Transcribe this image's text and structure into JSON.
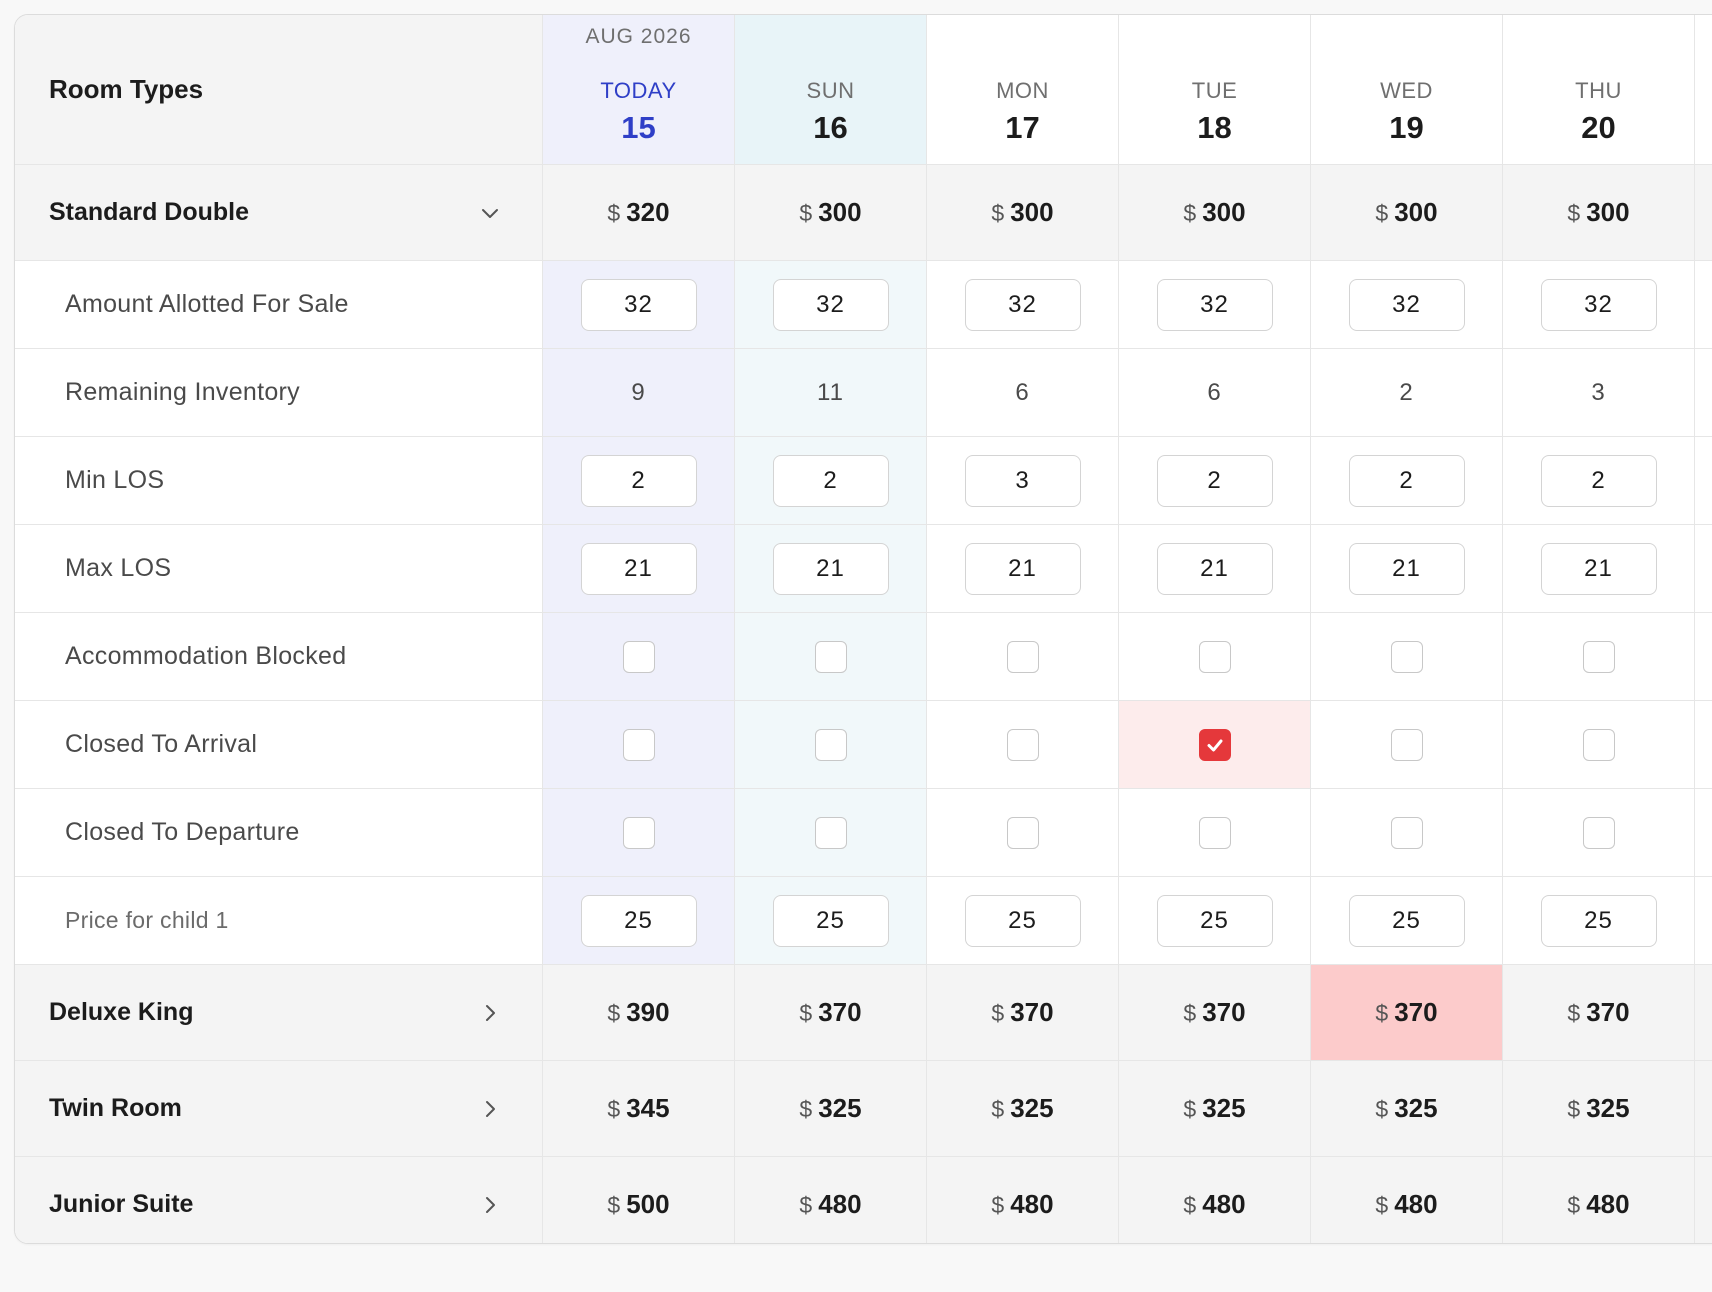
{
  "header": {
    "room_types_label": "Room Types",
    "month_label": "AUG 2026",
    "days": [
      {
        "dow": "TODAY",
        "num": "15"
      },
      {
        "dow": "SUN",
        "num": "16"
      },
      {
        "dow": "MON",
        "num": "17"
      },
      {
        "dow": "TUE",
        "num": "18"
      },
      {
        "dow": "WED",
        "num": "19"
      },
      {
        "dow": "THU",
        "num": "20"
      }
    ]
  },
  "currency_symbol": "$",
  "standard_double": {
    "name": "Standard Double",
    "prices": [
      "320",
      "300",
      "300",
      "300",
      "300",
      "300"
    ],
    "rows": {
      "allotted": {
        "label": "Amount Allotted For Sale",
        "values": [
          "32",
          "32",
          "32",
          "32",
          "32",
          "32"
        ]
      },
      "remaining": {
        "label": "Remaining Inventory",
        "values": [
          "9",
          "11",
          "6",
          "6",
          "2",
          "3"
        ]
      },
      "min_los": {
        "label": "Min LOS",
        "values": [
          "2",
          "2",
          "3",
          "2",
          "2",
          "2"
        ]
      },
      "max_los": {
        "label": "Max LOS",
        "values": [
          "21",
          "21",
          "21",
          "21",
          "21",
          "21"
        ]
      },
      "blocked": {
        "label": "Accommodation Blocked",
        "checked": [
          false,
          false,
          false,
          false,
          false,
          false
        ]
      },
      "cta": {
        "label": "Closed To Arrival",
        "checked": [
          false,
          false,
          false,
          true,
          false,
          false
        ]
      },
      "ctd": {
        "label": "Closed To Departure",
        "checked": [
          false,
          false,
          false,
          false,
          false,
          false
        ]
      },
      "child_price": {
        "label": "Price for child 1",
        "values": [
          "25",
          "25",
          "25",
          "25",
          "25",
          "25"
        ]
      }
    }
  },
  "groups": [
    {
      "name": "Deluxe King",
      "prices": [
        "390",
        "370",
        "370",
        "370",
        "370",
        "370"
      ]
    },
    {
      "name": "Twin Room",
      "prices": [
        "345",
        "325",
        "325",
        "325",
        "325",
        "325"
      ]
    },
    {
      "name": "Junior Suite",
      "prices": [
        "500",
        "480",
        "480",
        "480",
        "480",
        "480"
      ]
    }
  ],
  "colors": {
    "today_accent": "#2f3fc7",
    "checked_red": "#e5383b",
    "highlight_red": "#fccbcb"
  },
  "icons": {
    "expanded": "chevron-down-icon",
    "collapsed": "chevron-right-icon",
    "check": "check-icon"
  }
}
